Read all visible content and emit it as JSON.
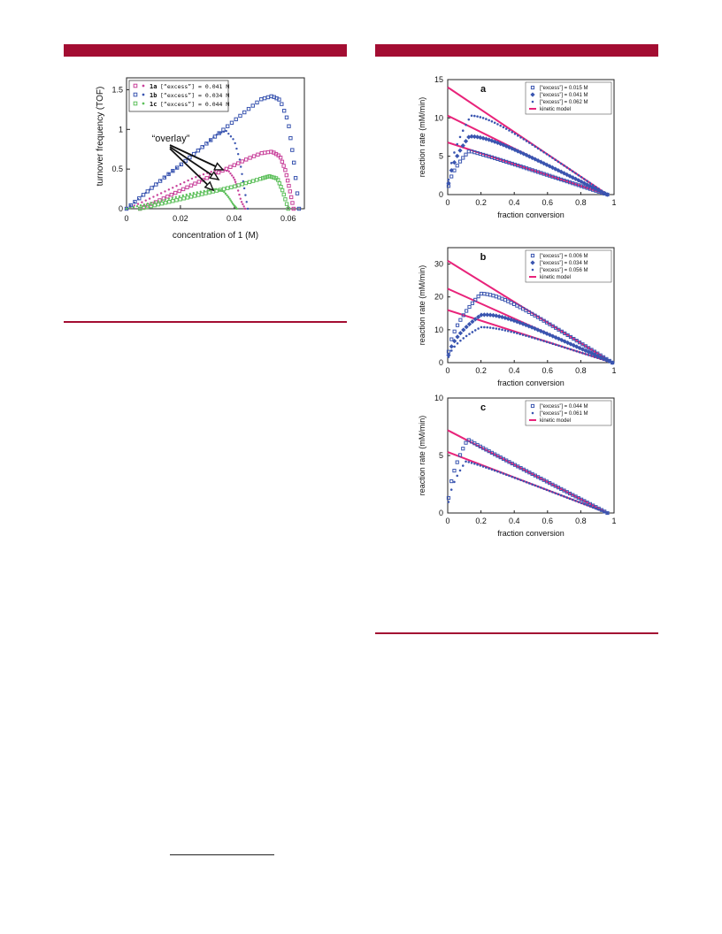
{
  "page": {
    "accent": "#a30d32"
  },
  "chart_data": [
    {
      "type": "scatter",
      "panel": "left",
      "xlabel": "concentration of 1  (M)",
      "ylabel": "turnover frequency (TOF)",
      "xlim": [
        0,
        0.066
      ],
      "ylim": [
        0,
        1.65
      ],
      "xticks": [
        "0",
        "0.02",
        "0.04",
        "0.06"
      ],
      "yticks": [
        "0",
        "0.5",
        "1",
        "1.5"
      ],
      "annotation": "“overlay”",
      "legend_position": "top-left",
      "series": [
        {
          "name": "1a [“excess”] = 0.041 M",
          "id": "1a",
          "label_rest": "[“excess”] = 0.041 M",
          "color": "#c8409a",
          "marker": "circle",
          "x": [
            0,
            0.005,
            0.01,
            0.015,
            0.02,
            0.025,
            0.03,
            0.035,
            0.038,
            0.04,
            0.041,
            0.0425,
            0.044
          ],
          "y": [
            0,
            0.07,
            0.15,
            0.23,
            0.31,
            0.39,
            0.45,
            0.5,
            0.47,
            0.38,
            0.28,
            0.1,
            0
          ]
        },
        {
          "name": "1a [“excess”] = 0.041 M",
          "id": "1a",
          "label_rest": "[“excess”] = 0.041 M",
          "color": "#c8409a",
          "marker": "square",
          "x": [
            0.005,
            0.01,
            0.015,
            0.02,
            0.025,
            0.03,
            0.035,
            0.04,
            0.045,
            0.05,
            0.054,
            0.057,
            0.059,
            0.0605,
            0.062
          ],
          "y": [
            0,
            0.07,
            0.15,
            0.23,
            0.31,
            0.39,
            0.47,
            0.55,
            0.63,
            0.7,
            0.72,
            0.66,
            0.48,
            0.25,
            0
          ]
        },
        {
          "name": "1b [“excess”] = 0.034 M",
          "id": "1b",
          "label_rest": "[“excess”] = 0.034 M",
          "color": "#3a55b0",
          "marker": "circle",
          "x": [
            0,
            0.005,
            0.01,
            0.015,
            0.02,
            0.025,
            0.03,
            0.034,
            0.037,
            0.04,
            0.042,
            0.0435,
            0.045
          ],
          "y": [
            0,
            0.14,
            0.28,
            0.42,
            0.55,
            0.69,
            0.83,
            0.95,
            0.98,
            0.86,
            0.62,
            0.3,
            0
          ]
        },
        {
          "name": "1b [“excess”] = 0.034 M",
          "id": "1b",
          "label_rest": "[“excess”] = 0.034 M",
          "color": "#3a55b0",
          "marker": "square",
          "x": [
            0,
            0.005,
            0.01,
            0.015,
            0.02,
            0.025,
            0.03,
            0.035,
            0.04,
            0.045,
            0.05,
            0.054,
            0.057,
            0.06,
            0.062,
            0.064
          ],
          "y": [
            0,
            0.14,
            0.28,
            0.42,
            0.55,
            0.69,
            0.83,
            0.97,
            1.11,
            1.25,
            1.38,
            1.42,
            1.37,
            1.1,
            0.62,
            0
          ]
        },
        {
          "name": "1c [“excess”] = 0.044 M",
          "id": "1c",
          "label_rest": "[“excess”] = 0.044 M",
          "color": "#5cbf5a",
          "marker": "circle",
          "x": [
            0,
            0.005,
            0.01,
            0.015,
            0.02,
            0.025,
            0.03,
            0.033,
            0.036,
            0.038,
            0.0395,
            0.041
          ],
          "y": [
            0,
            0.04,
            0.08,
            0.12,
            0.16,
            0.2,
            0.23,
            0.25,
            0.22,
            0.14,
            0.06,
            0
          ]
        },
        {
          "name": "1c [“excess”] = 0.044 M",
          "id": "1c",
          "label_rest": "[“excess”] = 0.044 M",
          "color": "#5cbf5a",
          "marker": "square",
          "x": [
            0.005,
            0.01,
            0.015,
            0.02,
            0.025,
            0.03,
            0.035,
            0.04,
            0.045,
            0.05,
            0.053,
            0.056,
            0.058,
            0.06
          ],
          "y": [
            0,
            0.04,
            0.08,
            0.12,
            0.16,
            0.2,
            0.24,
            0.28,
            0.33,
            0.38,
            0.41,
            0.38,
            0.22,
            0
          ]
        }
      ]
    },
    {
      "type": "scatter",
      "panel": "a",
      "panel_label": "a",
      "xlabel": "fraction conversion",
      "ylabel": "reaction rate  (mM/min)",
      "xlim": [
        0,
        1
      ],
      "ylim": [
        0,
        15
      ],
      "xticks": [
        "0",
        "0.2",
        "0.4",
        "0.6",
        "0.8",
        "1"
      ],
      "yticks": [
        "0",
        "5",
        "10",
        "15"
      ],
      "legend_position": "top-right",
      "series": [
        {
          "name": "[“excess”] = 0.015 M",
          "marker": "square",
          "color": "#3a55b0",
          "peak_x": 0.13,
          "peak_y": 5.7,
          "start_y": 6.8
        },
        {
          "name": "[“excess”] = 0.041 M",
          "marker": "diamond",
          "color": "#3a55b0",
          "peak_x": 0.13,
          "peak_y": 7.6,
          "start_y": 10.3
        },
        {
          "name": "[“excess”] = 0.062 M",
          "marker": "circle",
          "color": "#3a55b0",
          "peak_x": 0.14,
          "peak_y": 10.3,
          "start_y": 14.0
        }
      ],
      "model": {
        "name": "kinetic model",
        "color": "#e8237a",
        "end_x": 0.96
      }
    },
    {
      "type": "scatter",
      "panel": "b",
      "panel_label": "b",
      "xlabel": "fraction conversion",
      "ylabel": "reaction rate  (mM/min)",
      "xlim": [
        0,
        1
      ],
      "ylim": [
        0,
        35
      ],
      "xticks": [
        "0",
        "0.2",
        "0.4",
        "0.6",
        "0.8",
        "1"
      ],
      "yticks": [
        "0",
        "10",
        "20",
        "30"
      ],
      "legend_position": "top-right",
      "series": [
        {
          "name": "[“excess”] = 0.006 M",
          "marker": "square",
          "color": "#3a55b0",
          "peak_x": 0.2,
          "peak_y": 21.0,
          "start_y": 31.0
        },
        {
          "name": "[“excess”] = 0.034 M",
          "marker": "diamond",
          "color": "#3a55b0",
          "peak_x": 0.2,
          "peak_y": 14.5,
          "start_y": 22.5
        },
        {
          "name": "[“excess”] = 0.056 M",
          "marker": "circle",
          "color": "#3a55b0",
          "peak_x": 0.2,
          "peak_y": 10.8,
          "start_y": 16.0
        }
      ],
      "model": {
        "name": "kinetic model",
        "color": "#e8237a",
        "end_x": 0.99
      }
    },
    {
      "type": "scatter",
      "panel": "c",
      "panel_label": "c",
      "xlabel": "fraction conversion",
      "ylabel": "reaction rate  (mM/min)",
      "xlim": [
        0,
        1
      ],
      "ylim": [
        0,
        10
      ],
      "xticks": [
        "0",
        "0.2",
        "0.4",
        "0.6",
        "0.8",
        "1"
      ],
      "yticks": [
        "0",
        "5",
        "10"
      ],
      "legend_position": "top-right",
      "series": [
        {
          "name": "[“excess”] = 0.044 M",
          "marker": "square",
          "color": "#3a55b0",
          "peak_x": 0.12,
          "peak_y": 6.4,
          "start_y": 7.2
        },
        {
          "name": "[“excess”] = 0.061 M",
          "marker": "circle",
          "color": "#3a55b0",
          "peak_x": 0.11,
          "peak_y": 4.5,
          "start_y": 5.3
        }
      ],
      "model": {
        "name": "kinetic model",
        "color": "#e8237a",
        "end_x": 0.96
      }
    }
  ]
}
